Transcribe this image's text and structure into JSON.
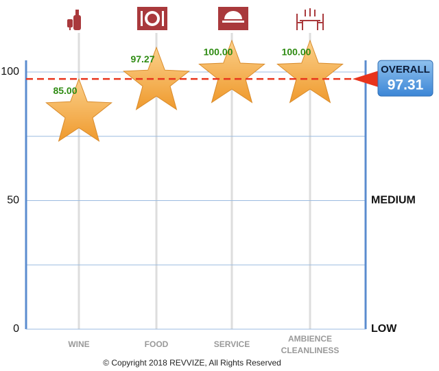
{
  "chart_data": {
    "type": "star",
    "categories": [
      "WINE",
      "FOOD",
      "SERVICE",
      [
        "AMBIENCE",
        "CLEANLINESS"
      ]
    ],
    "values": [
      85,
      97.27,
      100,
      100
    ],
    "value_labels": [
      "85.00",
      "97.27",
      "100.00",
      "100.00"
    ],
    "color": "#f5a93b",
    "ylim": [
      0,
      100
    ],
    "yticks": [
      0,
      50,
      100
    ],
    "grid_lines": [
      25,
      75,
      100
    ],
    "level_labels": [
      {
        "value": 0,
        "label": "LOW"
      },
      {
        "value": 50,
        "label": "MEDIUM"
      }
    ],
    "overall": {
      "label": "OVERALL",
      "value": 97.31,
      "color": "#e8341c"
    },
    "footer": "© Copyright 2018 REVVIZE, All Rights Reserved"
  }
}
